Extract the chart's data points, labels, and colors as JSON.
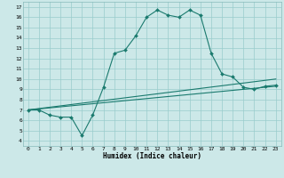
{
  "xlabel": "Humidex (Indice chaleur)",
  "bg_color": "#cce8e8",
  "grid_color": "#99cccc",
  "line_color": "#1a7a6e",
  "xlim": [
    -0.5,
    23.5
  ],
  "ylim": [
    3.5,
    17.5
  ],
  "xticks": [
    0,
    1,
    2,
    3,
    4,
    5,
    6,
    7,
    8,
    9,
    10,
    11,
    12,
    13,
    14,
    15,
    16,
    17,
    18,
    19,
    20,
    21,
    22,
    23
  ],
  "yticks": [
    4,
    5,
    6,
    7,
    8,
    9,
    10,
    11,
    12,
    13,
    14,
    15,
    16,
    17
  ],
  "line1_x": [
    0,
    1,
    2,
    3,
    4,
    5,
    6,
    7,
    8,
    9,
    10,
    11,
    12,
    13,
    14,
    15,
    16,
    17,
    18,
    19,
    20,
    21,
    22,
    23
  ],
  "line1_y": [
    7.0,
    7.0,
    6.5,
    6.3,
    6.3,
    4.5,
    6.5,
    9.2,
    12.5,
    12.8,
    14.2,
    16.0,
    16.7,
    16.2,
    16.0,
    16.7,
    16.2,
    12.5,
    10.5,
    10.2,
    9.2,
    9.0,
    9.3,
    9.4
  ],
  "line2_x": [
    0,
    23
  ],
  "line2_y": [
    7.0,
    9.3
  ],
  "line3_x": [
    0,
    23
  ],
  "line3_y": [
    7.0,
    10.0
  ],
  "tick_fontsize": 4.5,
  "xlabel_fontsize": 5.5
}
